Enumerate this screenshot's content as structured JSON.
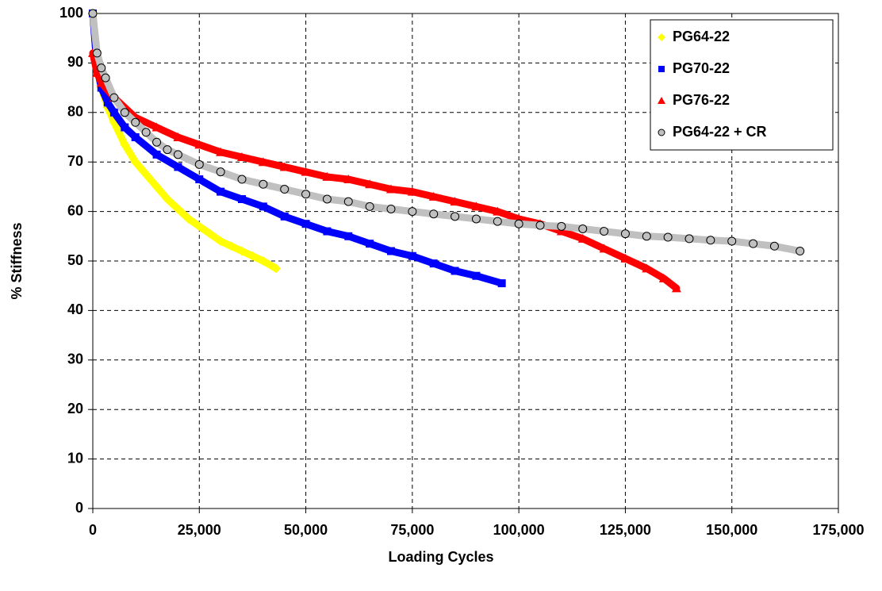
{
  "chart_data": {
    "type": "scatter",
    "xlabel": "Loading Cycles",
    "ylabel": "% Stiffness",
    "xlim": [
      0,
      175000
    ],
    "ylim": [
      0,
      100
    ],
    "xticks": [
      0,
      {
        "value": 25000,
        "label": "25,000"
      },
      {
        "value": 50000,
        "label": "50,000"
      },
      {
        "value": 75000,
        "label": "75,000"
      },
      {
        "value": 100000,
        "label": "100,000"
      },
      {
        "value": 125000,
        "label": "125,000"
      },
      {
        "value": 150000,
        "label": "150,000"
      },
      {
        "value": 175000,
        "label": "175,000"
      }
    ],
    "yticks": [
      0,
      10,
      20,
      30,
      40,
      50,
      60,
      70,
      80,
      90,
      100
    ],
    "grid": true,
    "legend": "top-right",
    "series": [
      {
        "name": "PG64-22",
        "color": "#ffff00",
        "marker": "diamond",
        "x": [
          0,
          1000,
          2000,
          3500,
          5000,
          7500,
          10000,
          12500,
          15000,
          17500,
          20000,
          22500,
          25000,
          27500,
          30000,
          32500,
          35000,
          37500,
          40000,
          43000
        ],
        "values": [
          100,
          89,
          85,
          81,
          78,
          73.5,
          70,
          67.5,
          65,
          62.5,
          60.5,
          58.5,
          57,
          55.5,
          54,
          53,
          52,
          51,
          50,
          48.5
        ]
      },
      {
        "name": "PG70-22",
        "color": "#0000ff",
        "marker": "square",
        "x": [
          0,
          1000,
          2000,
          3500,
          5000,
          7500,
          10000,
          15000,
          20000,
          25000,
          30000,
          35000,
          40000,
          45000,
          50000,
          55000,
          60000,
          65000,
          70000,
          75000,
          80000,
          85000,
          90000,
          96000
        ],
        "values": [
          100,
          89,
          85,
          82,
          80,
          77,
          75,
          71.5,
          69,
          66.5,
          64,
          62.5,
          61,
          59,
          57.5,
          56,
          55,
          53.5,
          52,
          51,
          49.5,
          48,
          47,
          45.5
        ]
      },
      {
        "name": "PG76-22",
        "color": "#ff0000",
        "marker": "triangle",
        "x": [
          0,
          1000,
          2000,
          5000,
          10000,
          15000,
          20000,
          25000,
          30000,
          35000,
          40000,
          45000,
          50000,
          55000,
          60000,
          65000,
          70000,
          75000,
          80000,
          85000,
          90000,
          95000,
          100000,
          105000,
          110000,
          115000,
          120000,
          125000,
          130000,
          134000,
          137000
        ],
        "values": [
          92,
          88,
          86,
          83,
          79,
          77,
          75,
          73.5,
          72,
          71,
          70,
          69,
          68,
          67,
          66.5,
          65.5,
          64.5,
          64,
          63,
          62,
          61,
          60,
          58.5,
          57.5,
          56,
          54.5,
          52.5,
          50.5,
          48.5,
          46.5,
          44.5
        ]
      },
      {
        "name": "PG64-22 + CR",
        "color": "#c0c0c0",
        "marker": "circle",
        "x": [
          0,
          1000,
          2000,
          3000,
          5000,
          7500,
          10000,
          12500,
          15000,
          17500,
          20000,
          25000,
          30000,
          35000,
          40000,
          45000,
          50000,
          55000,
          60000,
          65000,
          70000,
          75000,
          80000,
          85000,
          90000,
          95000,
          100000,
          105000,
          110000,
          115000,
          120000,
          125000,
          130000,
          135000,
          140000,
          145000,
          150000,
          155000,
          160000,
          166000
        ],
        "values": [
          100,
          92,
          89,
          87,
          83,
          80,
          78,
          76,
          74,
          72.5,
          71.5,
          69.5,
          68,
          66.5,
          65.5,
          64.5,
          63.5,
          62.5,
          62,
          61,
          60.5,
          60,
          59.5,
          59,
          58.5,
          58,
          57.5,
          57.2,
          57,
          56.5,
          56,
          55.5,
          55,
          54.8,
          54.5,
          54.2,
          54,
          53.5,
          53,
          52
        ]
      }
    ]
  }
}
